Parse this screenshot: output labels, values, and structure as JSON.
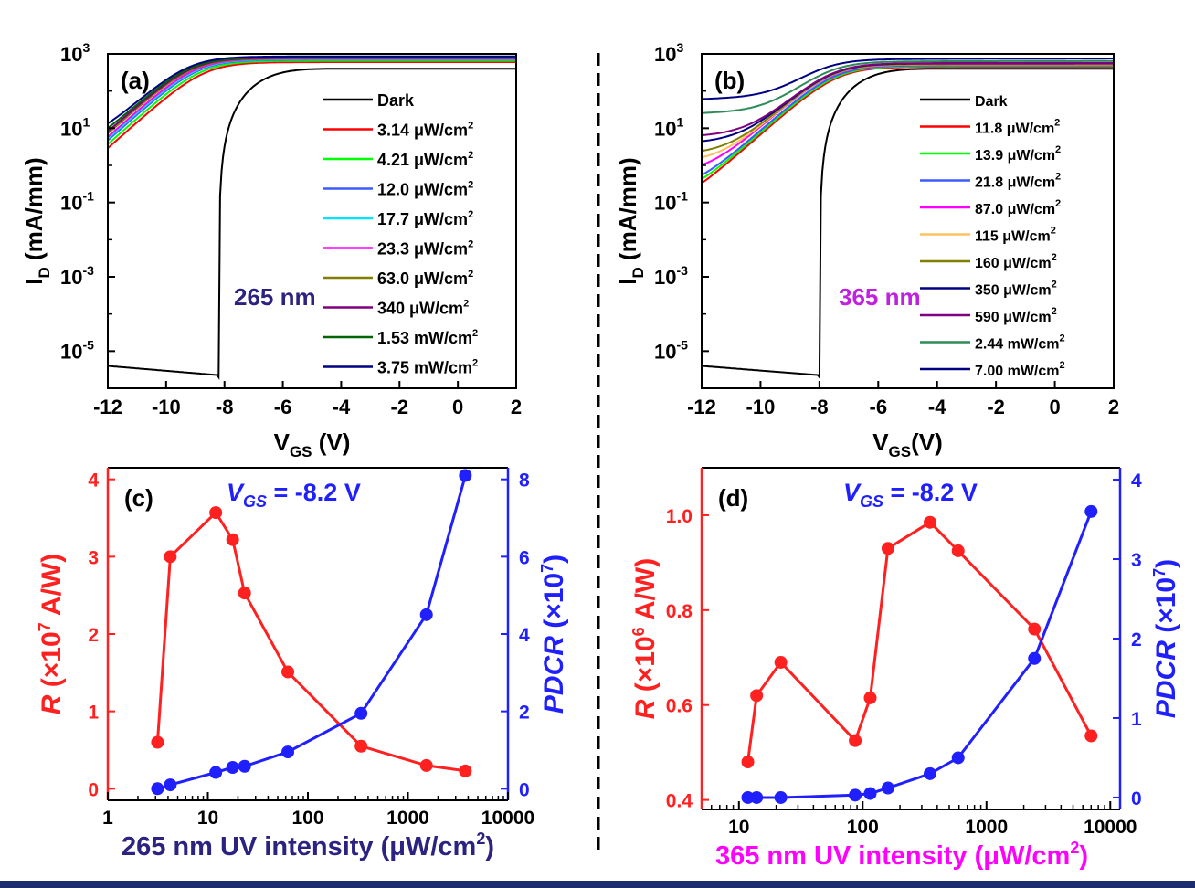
{
  "chart_data": [
    {
      "panel": "(a)",
      "type": "line",
      "annotation": "265 nm",
      "annotation_color": "#2c2380",
      "xlabel_main": "V",
      "xlabel_sub": "GS",
      "xlabel_unit": " (V)",
      "ylabel_main": "I",
      "ylabel_sub": "D",
      "ylabel_unit": " (mA/mm)",
      "x_scale": "linear",
      "y_scale": "log",
      "xlim": [
        -12,
        2
      ],
      "ylim": [
        1e-06,
        1000
      ],
      "x_ticks": [
        -12,
        -10,
        -8,
        -6,
        -4,
        -2,
        0,
        2
      ],
      "x_tick_labels": [
        "-12",
        "-10",
        "-8",
        "-6",
        "-4",
        "-2",
        "0",
        "2"
      ],
      "y_ticks": [
        1e-05,
        0.001,
        0.1,
        10,
        1000
      ],
      "y_tick_base": [
        "10",
        "10",
        "10",
        "10",
        "10"
      ],
      "y_tick_exp": [
        "-5",
        "-3",
        "-1",
        "1",
        "3"
      ],
      "legend_position": "right",
      "series": [
        {
          "name": "Dark",
          "color": "#000000",
          "floor": 4e-06,
          "vth": -8.2,
          "sat": 400
        },
        {
          "name": "3.14 μW/cm2",
          "color": "#ff0000",
          "floor": 0.0002,
          "vth": -9.6,
          "sat": 600
        },
        {
          "name": "4.21 μW/cm2",
          "color": "#00ff00",
          "floor": 0.009,
          "vth": -9.7,
          "sat": 650
        },
        {
          "name": "12.0 μW/cm2",
          "color": "#3b5bff",
          "floor": 0.02,
          "vth": -9.8,
          "sat": 700
        },
        {
          "name": "17.7 μW/cm2",
          "color": "#00e5ff",
          "floor": 0.03,
          "vth": -9.85,
          "sat": 720
        },
        {
          "name": "23.3 μW/cm2",
          "color": "#ff00ff",
          "floor": 0.04,
          "vth": -9.9,
          "sat": 740
        },
        {
          "name": "63.0 μW/cm2",
          "color": "#808000",
          "floor": 0.2,
          "vth": -10.0,
          "sat": 760
        },
        {
          "name": "340 μW/cm2",
          "color": "#800080",
          "floor": 0.5,
          "vth": -10.05,
          "sat": 780
        },
        {
          "name": "1.53 mW/cm2",
          "color": "#006400",
          "floor": 1.5,
          "vth": -10.1,
          "sat": 800
        },
        {
          "name": "3.75 mW/cm2",
          "color": "#000080",
          "floor": 3.5,
          "vth": -10.15,
          "sat": 850
        }
      ],
      "legend_text": [
        [
          "Dark",
          "",
          ""
        ],
        [
          "3.14 μW/cm",
          "2",
          ""
        ],
        [
          "4.21 μW/cm",
          "2",
          ""
        ],
        [
          "12.0 μW/cm",
          "2",
          ""
        ],
        [
          "17.7 μW/cm",
          "2",
          ""
        ],
        [
          "23.3 μW/cm",
          "2",
          ""
        ],
        [
          "63.0 μW/cm",
          "2",
          ""
        ],
        [
          "340 μW/cm",
          "2",
          ""
        ],
        [
          "1.53 mW/cm",
          "2",
          ""
        ],
        [
          "3.75 mW/cm",
          "2",
          ""
        ]
      ]
    },
    {
      "panel": "(b)",
      "type": "line",
      "annotation": "365 nm",
      "annotation_color": "#c020e0",
      "xlabel_main": "V",
      "xlabel_sub": "GS",
      "xlabel_unit": "(V)",
      "ylabel_main": "I",
      "ylabel_sub": "D",
      "ylabel_unit": " (mA/mm)",
      "x_scale": "linear",
      "y_scale": "log",
      "xlim": [
        -12,
        2
      ],
      "ylim": [
        1e-06,
        1000
      ],
      "x_ticks": [
        -12,
        -10,
        -8,
        -6,
        -4,
        -2,
        0,
        2
      ],
      "x_tick_labels": [
        "-12",
        "-10",
        "-8",
        "-6",
        "-4",
        "-2",
        "0",
        "2"
      ],
      "y_ticks": [
        1e-05,
        0.001,
        0.1,
        10,
        1000
      ],
      "y_tick_base": [
        "10",
        "10",
        "10",
        "10",
        "10"
      ],
      "y_tick_exp": [
        "-5",
        "-3",
        "-1",
        "1",
        "3"
      ],
      "legend_position": "right",
      "series": [
        {
          "name": "Dark",
          "color": "#000000",
          "floor": 4e-06,
          "vth": -8.0,
          "sat": 400
        },
        {
          "name": "11.8 μW/cm2",
          "color": "#ff0000",
          "floor": 0.06,
          "vth": -8.3,
          "sat": 450
        },
        {
          "name": "13.9 μW/cm2",
          "color": "#00ff00",
          "floor": 0.12,
          "vth": -8.35,
          "sat": 470
        },
        {
          "name": "21.8 μW/cm2",
          "color": "#3b5bff",
          "floor": 0.2,
          "vth": -8.4,
          "sat": 490
        },
        {
          "name": "87.0 μW/cm2",
          "color": "#ff00ff",
          "floor": 0.6,
          "vth": -8.5,
          "sat": 510
        },
        {
          "name": "115 μW/cm2",
          "color": "#ffc060",
          "floor": 1.2,
          "vth": -8.5,
          "sat": 520
        },
        {
          "name": "160 μW/cm2",
          "color": "#808000",
          "floor": 2.0,
          "vth": -8.5,
          "sat": 530
        },
        {
          "name": "350 μW/cm2",
          "color": "#000080",
          "floor": 4.0,
          "vth": -8.5,
          "sat": 550
        },
        {
          "name": "590 μW/cm2",
          "color": "#800080",
          "floor": 6.0,
          "vth": -8.5,
          "sat": 560
        },
        {
          "name": "2.44 mW/cm2",
          "color": "#2e8b57",
          "floor": 25,
          "vth": -8.6,
          "sat": 600
        },
        {
          "name": "7.00 mW/cm2",
          "color": "#000080",
          "floor": 60,
          "vth": -8.8,
          "sat": 650
        }
      ],
      "legend_text": [
        [
          "Dark",
          "",
          ""
        ],
        [
          "11.8 μW/cm",
          "2",
          ""
        ],
        [
          "13.9 μW/cm",
          "2",
          ""
        ],
        [
          "21.8 μW/cm",
          "2",
          ""
        ],
        [
          "87.0 μW/cm",
          "2",
          ""
        ],
        [
          "115 μW/cm",
          "2",
          ""
        ],
        [
          "160 μW/cm",
          "2",
          ""
        ],
        [
          "350 μW/cm",
          "2",
          ""
        ],
        [
          "590 μW/cm",
          "2",
          ""
        ],
        [
          "2.44 mW/cm",
          "2",
          ""
        ],
        [
          "7.00 mW/cm",
          "2",
          ""
        ]
      ]
    },
    {
      "panel": "(c)",
      "type": "scatter",
      "annotation_italic": "V",
      "annotation_sub": "GS",
      "annotation_rest": " = -8.2 V",
      "x_scale": "log",
      "xlim": [
        1,
        10000
      ],
      "x_ticks": [
        1,
        10,
        100,
        1000,
        10000
      ],
      "x_tick_labels": [
        "1",
        "10",
        "100",
        "1000",
        "10000"
      ],
      "xlabel": "265 nm UV intensity (μW/cm",
      "xlabel_sup": "2",
      "xlabel_end": ")",
      "xlabel_color": "#2c2380",
      "left_axis": {
        "label_italic": "R",
        "label_text": " (×10",
        "label_sup": "7",
        "label_end": " A/W)",
        "color": "#ff2020",
        "ylim": [
          -0.15,
          4.15
        ],
        "ticks": [
          0,
          1,
          2,
          3,
          4
        ],
        "tick_labels": [
          "0",
          "1",
          "2",
          "3",
          "4"
        ]
      },
      "right_axis": {
        "label_italic": "PDCR",
        "label_text": " (×10",
        "label_sup": "7",
        "label_end": ")",
        "color": "#2020ff",
        "ylim": [
          -0.3,
          8.3
        ],
        "ticks": [
          0,
          2,
          4,
          6,
          8
        ],
        "tick_labels": [
          "0",
          "2",
          "4",
          "6",
          "8"
        ]
      },
      "series": [
        {
          "name": "R",
          "axis": "left",
          "color": "#ff2020",
          "x": [
            3.14,
            4.21,
            12.0,
            17.7,
            23.3,
            63.0,
            340,
            1530,
            3750
          ],
          "y": [
            0.6,
            3.0,
            3.57,
            3.22,
            2.53,
            1.51,
            0.55,
            0.3,
            0.23
          ]
        },
        {
          "name": "PDCR",
          "axis": "right",
          "color": "#2020ff",
          "x": [
            3.14,
            4.21,
            12.0,
            17.7,
            23.3,
            63.0,
            340,
            1530,
            3750
          ],
          "y": [
            0.0,
            0.1,
            0.42,
            0.55,
            0.58,
            0.95,
            1.95,
            4.5,
            8.1
          ]
        }
      ]
    },
    {
      "panel": "(d)",
      "type": "scatter",
      "annotation_italic": "V",
      "annotation_sub": "GS",
      "annotation_rest": " = -8.2 V",
      "x_scale": "log",
      "xlim": [
        5,
        12000
      ],
      "x_ticks": [
        10,
        100,
        1000,
        10000
      ],
      "x_tick_labels": [
        "10",
        "100",
        "1000",
        "10000"
      ],
      "xlabel": "365 nm UV intensity (μW/cm",
      "xlabel_sup": "2",
      "xlabel_end": ")",
      "xlabel_color": "#ff00ff",
      "left_axis": {
        "label_italic": "R",
        "label_text": " (×10",
        "label_sup": "6",
        "label_end": " A/W)",
        "color": "#ff2020",
        "ylim": [
          0.38,
          1.1
        ],
        "ticks": [
          0.4,
          0.6,
          0.8,
          1.0
        ],
        "tick_labels": [
          "0.4",
          "0.6",
          "0.8",
          "1.0"
        ]
      },
      "right_axis": {
        "label_italic": "PDCR",
        "label_text": " (×10",
        "label_sup": "7",
        "label_end": ")",
        "color": "#2020ff",
        "ylim": [
          -0.15,
          4.15
        ],
        "ticks": [
          0,
          1,
          2,
          3,
          4
        ],
        "tick_labels": [
          "0",
          "1",
          "2",
          "3",
          "4"
        ]
      },
      "series": [
        {
          "name": "R",
          "axis": "left",
          "color": "#ff2020",
          "x": [
            11.8,
            13.9,
            21.8,
            87.0,
            115,
            160,
            350,
            590,
            2440,
            7000
          ],
          "y": [
            0.48,
            0.62,
            0.69,
            0.525,
            0.615,
            0.93,
            0.985,
            0.925,
            0.76,
            0.535
          ]
        },
        {
          "name": "PDCR",
          "axis": "right",
          "color": "#2020ff",
          "x": [
            11.8,
            13.9,
            21.8,
            87.0,
            115,
            160,
            350,
            590,
            2440,
            7000
          ],
          "y": [
            0.0,
            0.0,
            0.0,
            0.03,
            0.05,
            0.12,
            0.3,
            0.5,
            1.75,
            3.6
          ]
        }
      ]
    }
  ]
}
